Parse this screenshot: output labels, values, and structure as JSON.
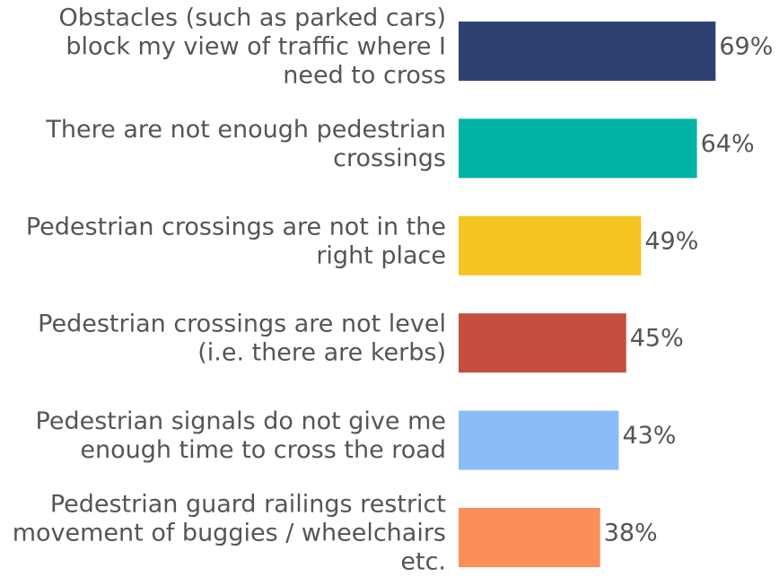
{
  "chart_data": {
    "type": "bar",
    "orientation": "horizontal",
    "categories": [
      [
        "Obstacles (such as parked cars)",
        "block my view of traffic where I",
        "need to cross"
      ],
      [
        "There are not enough pedestrian",
        "crossings"
      ],
      [
        "Pedestrian crossings are not in the",
        "right place"
      ],
      [
        "Pedestrian crossings are not level",
        "(i.e. there are kerbs)"
      ],
      [
        "Pedestrian signals do not give me",
        "enough time to cross the road"
      ],
      [
        "Pedestrian guard railings restrict",
        "movement of buggies / wheelchairs",
        "etc."
      ]
    ],
    "values": [
      69,
      64,
      49,
      45,
      43,
      38
    ],
    "value_labels": [
      "69%",
      "64%",
      "49%",
      "45%",
      "43%",
      "38%"
    ],
    "colors": [
      "#2e4272",
      "#00b3a5",
      "#f5c422",
      "#c44f3f",
      "#8bbcf9",
      "#fc8e57"
    ]
  }
}
